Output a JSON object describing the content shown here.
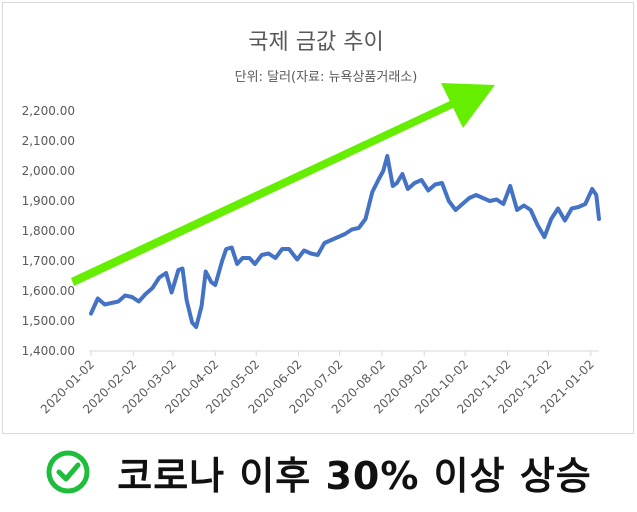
{
  "chart_data": {
    "type": "line",
    "title": "국제 금값 추이",
    "subtitle": "단위: 달러(자료: 뉴욕상품거래소)",
    "xlabel": "",
    "ylabel": "",
    "ylim": [
      1400,
      2200
    ],
    "y_ticks": [
      "1,400.00",
      "1,500.00",
      "1,600.00",
      "1,700.00",
      "1,800.00",
      "1,900.00",
      "2,000.00",
      "2,100.00",
      "2,200.00"
    ],
    "x_tick_labels": [
      "2020-01-02",
      "2020-02-02",
      "2020-03-02",
      "2020-04-02",
      "2020-05-02",
      "2020-06-02",
      "2020-07-02",
      "2020-08-02",
      "2020-09-02",
      "2020-10-02",
      "2020-11-02",
      "2020-12-02",
      "2021-01-02"
    ],
    "grid": false,
    "line_color": "#4472c4",
    "arrow_color": "#66ee00",
    "x": [
      "2020-01-02",
      "2020-01-07",
      "2020-01-12",
      "2020-01-17",
      "2020-01-22",
      "2020-01-27",
      "2020-02-01",
      "2020-02-06",
      "2020-02-11",
      "2020-02-16",
      "2020-02-21",
      "2020-02-26",
      "2020-03-01",
      "2020-03-06",
      "2020-03-09",
      "2020-03-12",
      "2020-03-16",
      "2020-03-19",
      "2020-03-23",
      "2020-03-26",
      "2020-03-30",
      "2020-04-02",
      "2020-04-07",
      "2020-04-10",
      "2020-04-14",
      "2020-04-18",
      "2020-04-22",
      "2020-04-27",
      "2020-05-01",
      "2020-05-06",
      "2020-05-11",
      "2020-05-16",
      "2020-05-21",
      "2020-05-26",
      "2020-06-01",
      "2020-06-06",
      "2020-06-11",
      "2020-06-16",
      "2020-06-21",
      "2020-06-26",
      "2020-07-01",
      "2020-07-06",
      "2020-07-11",
      "2020-07-16",
      "2020-07-21",
      "2020-07-26",
      "2020-07-31",
      "2020-08-03",
      "2020-08-06",
      "2020-08-10",
      "2020-08-13",
      "2020-08-17",
      "2020-08-21",
      "2020-08-26",
      "2020-08-31",
      "2020-09-05",
      "2020-09-10",
      "2020-09-15",
      "2020-09-20",
      "2020-09-25",
      "2020-09-30",
      "2020-10-05",
      "2020-10-10",
      "2020-10-15",
      "2020-10-20",
      "2020-10-25",
      "2020-10-30",
      "2020-11-04",
      "2020-11-09",
      "2020-11-14",
      "2020-11-19",
      "2020-11-24",
      "2020-11-29",
      "2020-12-04",
      "2020-12-09",
      "2020-12-14",
      "2020-12-19",
      "2020-12-24",
      "2020-12-29",
      "2021-01-03",
      "2021-01-06",
      "2021-01-08"
    ],
    "series": [
      {
        "values": [
          1525,
          1575,
          1555,
          1560,
          1565,
          1585,
          1580,
          1565,
          1590,
          1610,
          1645,
          1660,
          1595,
          1670,
          1675,
          1570,
          1495,
          1480,
          1550,
          1665,
          1630,
          1620,
          1700,
          1740,
          1745,
          1690,
          1710,
          1710,
          1690,
          1720,
          1725,
          1710,
          1740,
          1740,
          1705,
          1735,
          1725,
          1720,
          1760,
          1770,
          1780,
          1790,
          1805,
          1810,
          1840,
          1930,
          1975,
          2000,
          2050,
          1950,
          1960,
          1990,
          1940,
          1960,
          1970,
          1935,
          1955,
          1960,
          1900,
          1870,
          1890,
          1910,
          1920,
          1910,
          1900,
          1905,
          1890,
          1950,
          1870,
          1885,
          1870,
          1820,
          1780,
          1840,
          1875,
          1835,
          1875,
          1880,
          1890,
          1940,
          1920,
          1840
        ]
      }
    ]
  },
  "caption": {
    "text": "코로나 이후 30% 이상 상승",
    "check_color": "#1fbd3c"
  }
}
